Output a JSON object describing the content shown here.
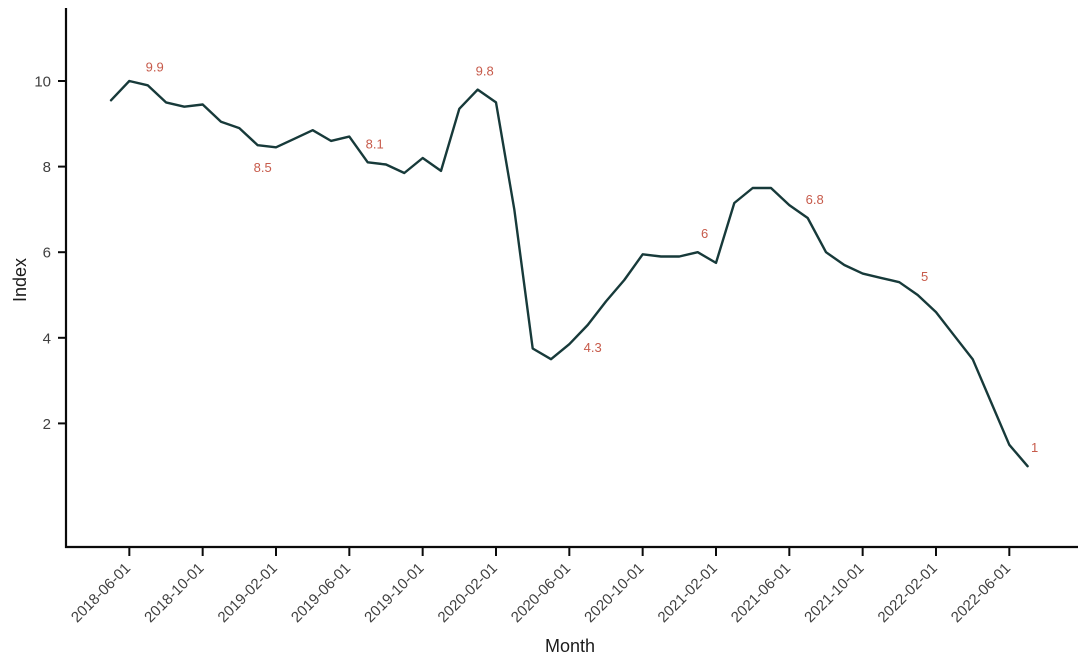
{
  "chart_data": {
    "type": "line",
    "title": "",
    "xlabel": "Month",
    "ylabel": "Index",
    "grid": false,
    "legend": false,
    "ylim": [
      0,
      11.5
    ],
    "yticks": [
      2,
      4,
      6,
      8,
      10
    ],
    "xticks": [
      "2018-06-01",
      "2018-10-01",
      "2019-02-01",
      "2019-06-01",
      "2019-10-01",
      "2020-02-01",
      "2020-06-01",
      "2020-10-01",
      "2021-02-01",
      "2021-06-01",
      "2021-10-01",
      "2022-02-01",
      "2022-06-01"
    ],
    "x_tick_rotation": 45,
    "x": [
      "2018-05-01",
      "2018-06-01",
      "2018-07-01",
      "2018-08-01",
      "2018-09-01",
      "2018-10-01",
      "2018-11-01",
      "2018-12-01",
      "2019-01-01",
      "2019-02-01",
      "2019-03-01",
      "2019-04-01",
      "2019-05-01",
      "2019-06-01",
      "2019-07-01",
      "2019-08-01",
      "2019-09-01",
      "2019-10-01",
      "2019-11-01",
      "2019-12-01",
      "2020-01-01",
      "2020-02-01",
      "2020-03-01",
      "2020-04-01",
      "2020-05-01",
      "2020-06-01",
      "2020-07-01",
      "2020-08-01",
      "2020-09-01",
      "2020-10-01",
      "2020-11-01",
      "2020-12-01",
      "2021-01-01",
      "2021-02-01",
      "2021-03-01",
      "2021-04-01",
      "2021-05-01",
      "2021-06-01",
      "2021-07-01",
      "2021-08-01",
      "2021-09-01",
      "2021-10-01",
      "2021-11-01",
      "2021-12-01",
      "2022-01-01",
      "2022-02-01",
      "2022-03-01",
      "2022-04-01",
      "2022-05-01",
      "2022-06-01",
      "2022-07-01"
    ],
    "values": [
      9.55,
      10,
      9.9,
      9.5,
      9.4,
      9.45,
      9.05,
      8.9,
      8.5,
      8.45,
      8.65,
      8.85,
      8.6,
      8.7,
      8.1,
      8.05,
      7.85,
      8.2,
      7.9,
      9.35,
      9.8,
      9.5,
      7.0,
      3.75,
      3.5,
      3.85,
      4.3,
      4.85,
      5.35,
      5.95,
      5.9,
      5.9,
      6.0,
      5.75,
      7.15,
      7.5,
      7.5,
      7.1,
      6.8,
      6.0,
      5.7,
      5.5,
      5.4,
      5.3,
      5.0,
      4.6,
      4.05,
      3.5,
      2.5,
      1.5,
      1.0
    ],
    "point_labels": [
      {
        "x": "2018-07-01",
        "text": "9.9",
        "placement": "above"
      },
      {
        "x": "2019-01-01",
        "text": "8.5",
        "placement": "below"
      },
      {
        "x": "2019-07-01",
        "text": "8.1",
        "placement": "above"
      },
      {
        "x": "2020-01-01",
        "text": "9.8",
        "placement": "above"
      },
      {
        "x": "2020-07-01",
        "text": "4.3",
        "placement": "below"
      },
      {
        "x": "2021-01-01",
        "text": "6",
        "placement": "above"
      },
      {
        "x": "2021-07-01",
        "text": "6.8",
        "placement": "above"
      },
      {
        "x": "2022-01-01",
        "text": "5",
        "placement": "above"
      },
      {
        "x": "2022-07-01",
        "text": "1",
        "placement": "above"
      }
    ],
    "colors": {
      "line": "#173a3a",
      "point_labels": "#c75b4b",
      "axis_line": "#0a0a0a",
      "tick_text": "#404040",
      "axis_title_text": "#1b1b1b",
      "background": "#ffffff"
    }
  }
}
